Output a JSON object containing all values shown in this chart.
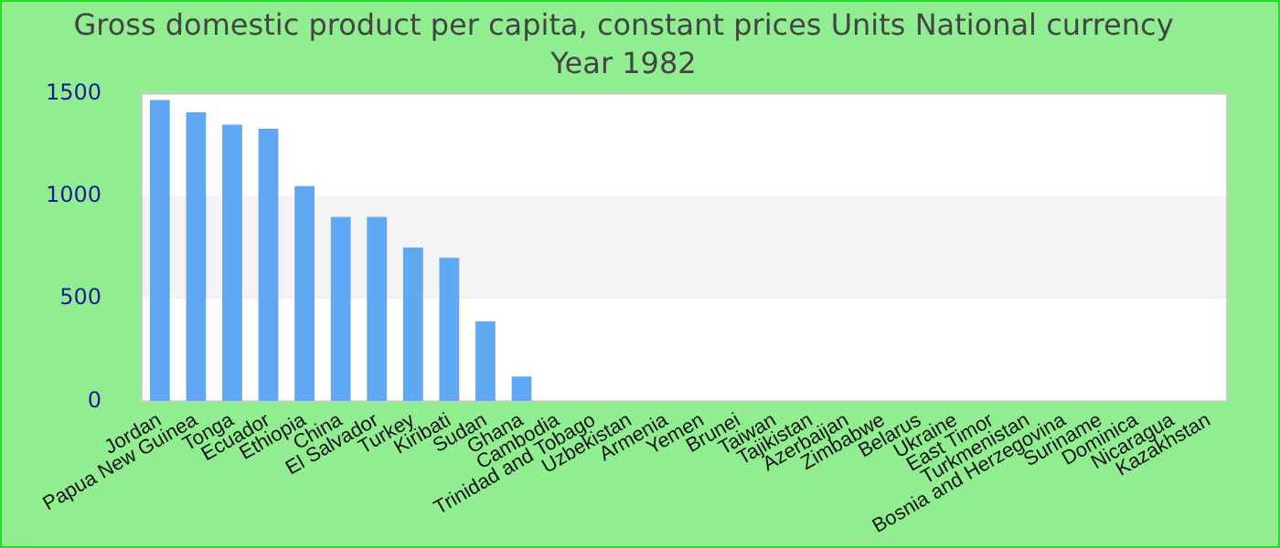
{
  "chart_data": {
    "type": "bar",
    "title": "Gross domestic product per capita, constant prices Units National currency",
    "subtitle": "Year 1982",
    "categories": [
      "Jordan",
      "Papua New Guinea",
      "Tonga",
      "Ecuador",
      "Ethiopia",
      "China",
      "El Salvador",
      "Turkey",
      "Kiribati",
      "Sudan",
      "Ghana",
      "Cambodia",
      "Trinidad and Tobago",
      "Uzbekistan",
      "Armenia",
      "Yemen",
      "Brunei",
      "Taiwan",
      "Tajikistan",
      "Azerbaijan",
      "Zimbabwe",
      "Belarus",
      "Ukraine",
      "East Timor",
      "Turkmenistan",
      "Bosnia and Herzegovina",
      "Suriname",
      "Dominica",
      "Nicaragua",
      "Kazakhstan"
    ],
    "values": [
      1470,
      1410,
      1350,
      1330,
      1050,
      900,
      900,
      750,
      700,
      390,
      120,
      null,
      null,
      null,
      null,
      null,
      null,
      null,
      null,
      null,
      null,
      null,
      null,
      null,
      null,
      null,
      null,
      null,
      null,
      null
    ],
    "color": "#60a8f4",
    "ylim": [
      0,
      1500
    ],
    "yticks": [
      0,
      500,
      1000,
      1500
    ],
    "bands": [
      {
        "axis": "y",
        "from": 500,
        "to": 1000,
        "color": "#f3f3f3"
      }
    ],
    "legend": false
  }
}
